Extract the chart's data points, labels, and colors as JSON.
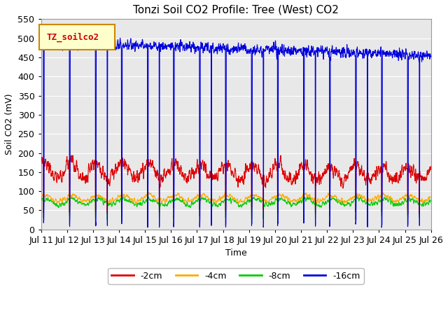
{
  "title": "Tonzi Soil CO2 Profile: Tree (West) CO2",
  "ylabel": "Soil CO2 (mV)",
  "xlabel": "Time",
  "ylim": [
    0,
    550
  ],
  "yticks": [
    0,
    50,
    100,
    150,
    200,
    250,
    300,
    350,
    400,
    450,
    500,
    550
  ],
  "legend_label": "TZ_soilco2",
  "legend_items": [
    "-2cm",
    "-4cm",
    "-8cm",
    "-16cm"
  ],
  "line_colors": [
    "#dd0000",
    "#ffaa00",
    "#00cc00",
    "#0000dd"
  ],
  "background_color": "#e8e8e8",
  "fig_background": "#ffffff",
  "n_days": 15,
  "start_day": 11,
  "points_per_day": 144,
  "figsize": [
    6.4,
    4.8
  ],
  "dpi": 100
}
